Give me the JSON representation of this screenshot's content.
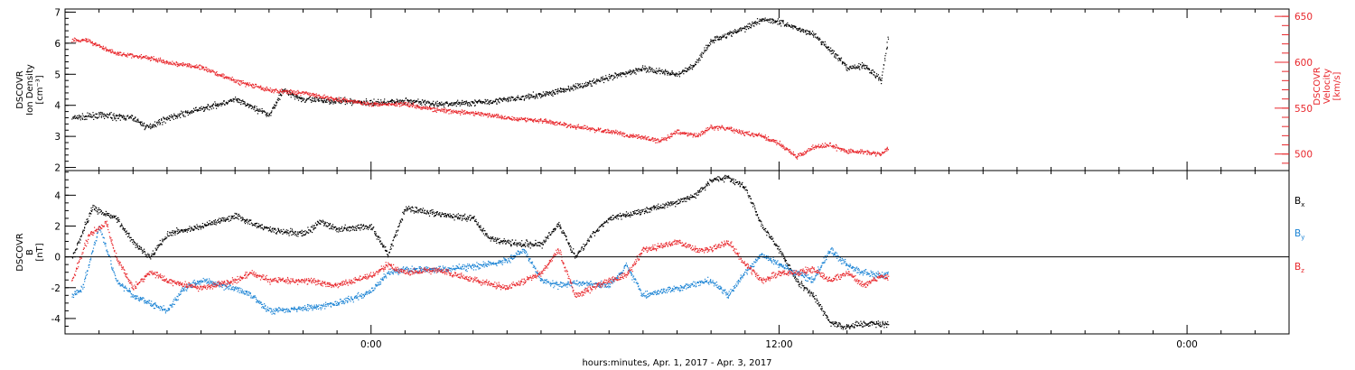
{
  "chart_data": {
    "type": "scatter",
    "xlabel": "hours:minutes, Apr.  1, 2017 - Apr.  3, 2017",
    "x_tick_labels": [
      "0:00",
      "12:00",
      "0:00"
    ],
    "colors": {
      "black": "#000000",
      "red": "#e8262b",
      "blue": "#1a83d4"
    },
    "panels": [
      {
        "name": "top",
        "ylabel_left": [
          "DSCOVR",
          "Ion Density",
          "[cm⁻³]"
        ],
        "ylim_left": [
          1.9,
          7.1
        ],
        "yticks_left": [
          2,
          3,
          4,
          5,
          6,
          7
        ],
        "ylabel_right": [
          "DSCOVR",
          "Velocity",
          "[km/s]"
        ],
        "ylim_right": [
          482,
          658
        ],
        "yticks_right": [
          500,
          550,
          600,
          650
        ],
        "series": [
          {
            "color": "black",
            "axis": "left",
            "x_hours": [
              -8.8,
              -8.0,
              -7.0,
              -6.6,
              -6.0,
              -5.0,
              -4.0,
              -3.0,
              -2.6,
              -2.0,
              -1.0,
              0.0,
              1.0,
              2.0,
              3.0,
              4.0,
              5.0,
              6.0,
              7.0,
              8.0,
              9.0,
              9.5,
              10.0,
              10.5,
              11.0,
              11.5,
              12.0,
              12.5,
              13.0,
              13.5,
              14.0,
              14.5,
              15.0,
              15.2
            ],
            "y": [
              3.6,
              3.7,
              3.6,
              3.3,
              3.6,
              3.9,
              4.2,
              3.7,
              4.5,
              4.2,
              4.15,
              4.1,
              4.15,
              4.05,
              4.1,
              4.2,
              4.35,
              4.6,
              4.9,
              5.2,
              5.0,
              5.3,
              6.1,
              6.3,
              6.5,
              6.8,
              6.7,
              6.5,
              6.3,
              5.8,
              5.2,
              5.3,
              4.8,
              6.2
            ]
          },
          {
            "color": "red",
            "axis": "right",
            "x_hours": [
              -8.8,
              -8.4,
              -7.5,
              -6.5,
              -6.0,
              -5.0,
              -4.0,
              -3.0,
              -2.0,
              -1.0,
              0.0,
              1.0,
              2.0,
              3.0,
              4.0,
              5.0,
              6.0,
              7.0,
              8.0,
              8.5,
              9.0,
              9.6,
              10.0,
              10.5,
              11.0,
              11.5,
              12.0,
              12.5,
              13.0,
              13.5,
              14.0,
              14.5,
              15.0,
              15.2
            ],
            "y": [
              625,
              625,
              610,
              605,
              600,
              595,
              580,
              570,
              567,
              560,
              555,
              555,
              548,
              545,
              540,
              537,
              530,
              525,
              518,
              515,
              525,
              520,
              530,
              528,
              523,
              520,
              512,
              497,
              508,
              510,
              503,
              503,
              500,
              508
            ]
          }
        ]
      },
      {
        "name": "bottom",
        "ylabel_left": [
          "DSCOVR",
          "B",
          "[nT]"
        ],
        "ylim_left": [
          -5.0,
          5.6
        ],
        "yticks_left": [
          -4,
          -2,
          0,
          2,
          4
        ],
        "zero_line": true,
        "legend": [
          "Bx",
          "By",
          "Bz"
        ],
        "series": [
          {
            "name": "Bx",
            "color": "black",
            "x_hours": [
              -8.8,
              -8.2,
              -7.5,
              -7.0,
              -6.5,
              -6.0,
              -5.0,
              -4.0,
              -3.5,
              -3.0,
              -2.0,
              -1.5,
              -1.0,
              0.0,
              0.5,
              1.0,
              2.0,
              3.0,
              3.5,
              4.0,
              5.0,
              5.5,
              6.0,
              6.5,
              7.0,
              8.0,
              9.0,
              9.5,
              10.0,
              10.5,
              11.0,
              11.5,
              12.0,
              12.5,
              13.0,
              13.5,
              14.0,
              14.5,
              15.0,
              15.2
            ],
            "y": [
              0.0,
              3.2,
              2.5,
              1.0,
              0.0,
              1.5,
              2.0,
              2.7,
              2.2,
              1.8,
              1.5,
              2.3,
              1.8,
              2.0,
              0.2,
              3.2,
              2.8,
              2.5,
              1.2,
              1.0,
              0.8,
              2.2,
              0.0,
              1.5,
              2.5,
              3.0,
              3.6,
              4.0,
              5.0,
              5.2,
              4.5,
              2.0,
              0.5,
              -1.5,
              -2.5,
              -4.3,
              -4.5,
              -4.3,
              -4.3,
              -4.4
            ]
          },
          {
            "name": "By",
            "color": "blue",
            "x_hours": [
              -8.8,
              -8.5,
              -8.0,
              -7.5,
              -7.0,
              -6.5,
              -6.0,
              -5.5,
              -5.0,
              -4.0,
              -3.5,
              -3.0,
              -2.0,
              -1.0,
              0.0,
              0.5,
              1.0,
              2.0,
              3.0,
              4.0,
              4.5,
              5.0,
              5.5,
              6.0,
              7.0,
              7.5,
              8.0,
              9.0,
              10.0,
              10.5,
              11.0,
              11.5,
              12.0,
              12.5,
              13.0,
              13.5,
              14.0,
              14.5,
              15.0,
              15.2
            ],
            "y": [
              -2.5,
              -2.0,
              2.0,
              -1.5,
              -2.5,
              -3.0,
              -3.5,
              -2.0,
              -1.5,
              -2.0,
              -2.5,
              -3.5,
              -3.3,
              -3.0,
              -2.2,
              -1.0,
              -0.8,
              -0.8,
              -0.6,
              -0.2,
              0.5,
              -1.5,
              -1.8,
              -1.7,
              -1.8,
              -0.5,
              -2.5,
              -2.0,
              -1.5,
              -2.5,
              -1.0,
              0.2,
              -0.5,
              -1.0,
              -1.5,
              0.5,
              -0.5,
              -1.0,
              -1.2,
              -1.0
            ]
          },
          {
            "name": "Bz",
            "color": "red",
            "x_hours": [
              -8.8,
              -8.3,
              -7.8,
              -7.5,
              -7.0,
              -6.5,
              -6.0,
              -5.0,
              -4.0,
              -3.5,
              -3.0,
              -2.0,
              -1.0,
              0.0,
              0.5,
              1.0,
              2.0,
              3.0,
              4.0,
              5.0,
              5.5,
              6.0,
              7.0,
              7.5,
              8.0,
              8.5,
              9.0,
              9.5,
              10.0,
              10.5,
              11.0,
              11.5,
              12.0,
              12.5,
              13.0,
              13.5,
              14.0,
              14.5,
              15.0,
              15.2
            ],
            "y": [
              -1.5,
              1.5,
              2.2,
              0.0,
              -2.0,
              -1.0,
              -1.5,
              -2.0,
              -1.5,
              -1.0,
              -1.5,
              -1.5,
              -1.8,
              -1.2,
              -0.5,
              -1.0,
              -0.8,
              -1.5,
              -2.0,
              -1.0,
              0.5,
              -2.5,
              -1.5,
              -1.2,
              0.5,
              0.7,
              1.0,
              0.5,
              0.5,
              1.0,
              -0.5,
              -1.5,
              -1.0,
              -1.0,
              -0.8,
              -1.5,
              -1.0,
              -1.8,
              -1.2,
              -1.3
            ]
          }
        ]
      }
    ],
    "x_range_hours": [
      -9.0,
      27.0
    ]
  }
}
